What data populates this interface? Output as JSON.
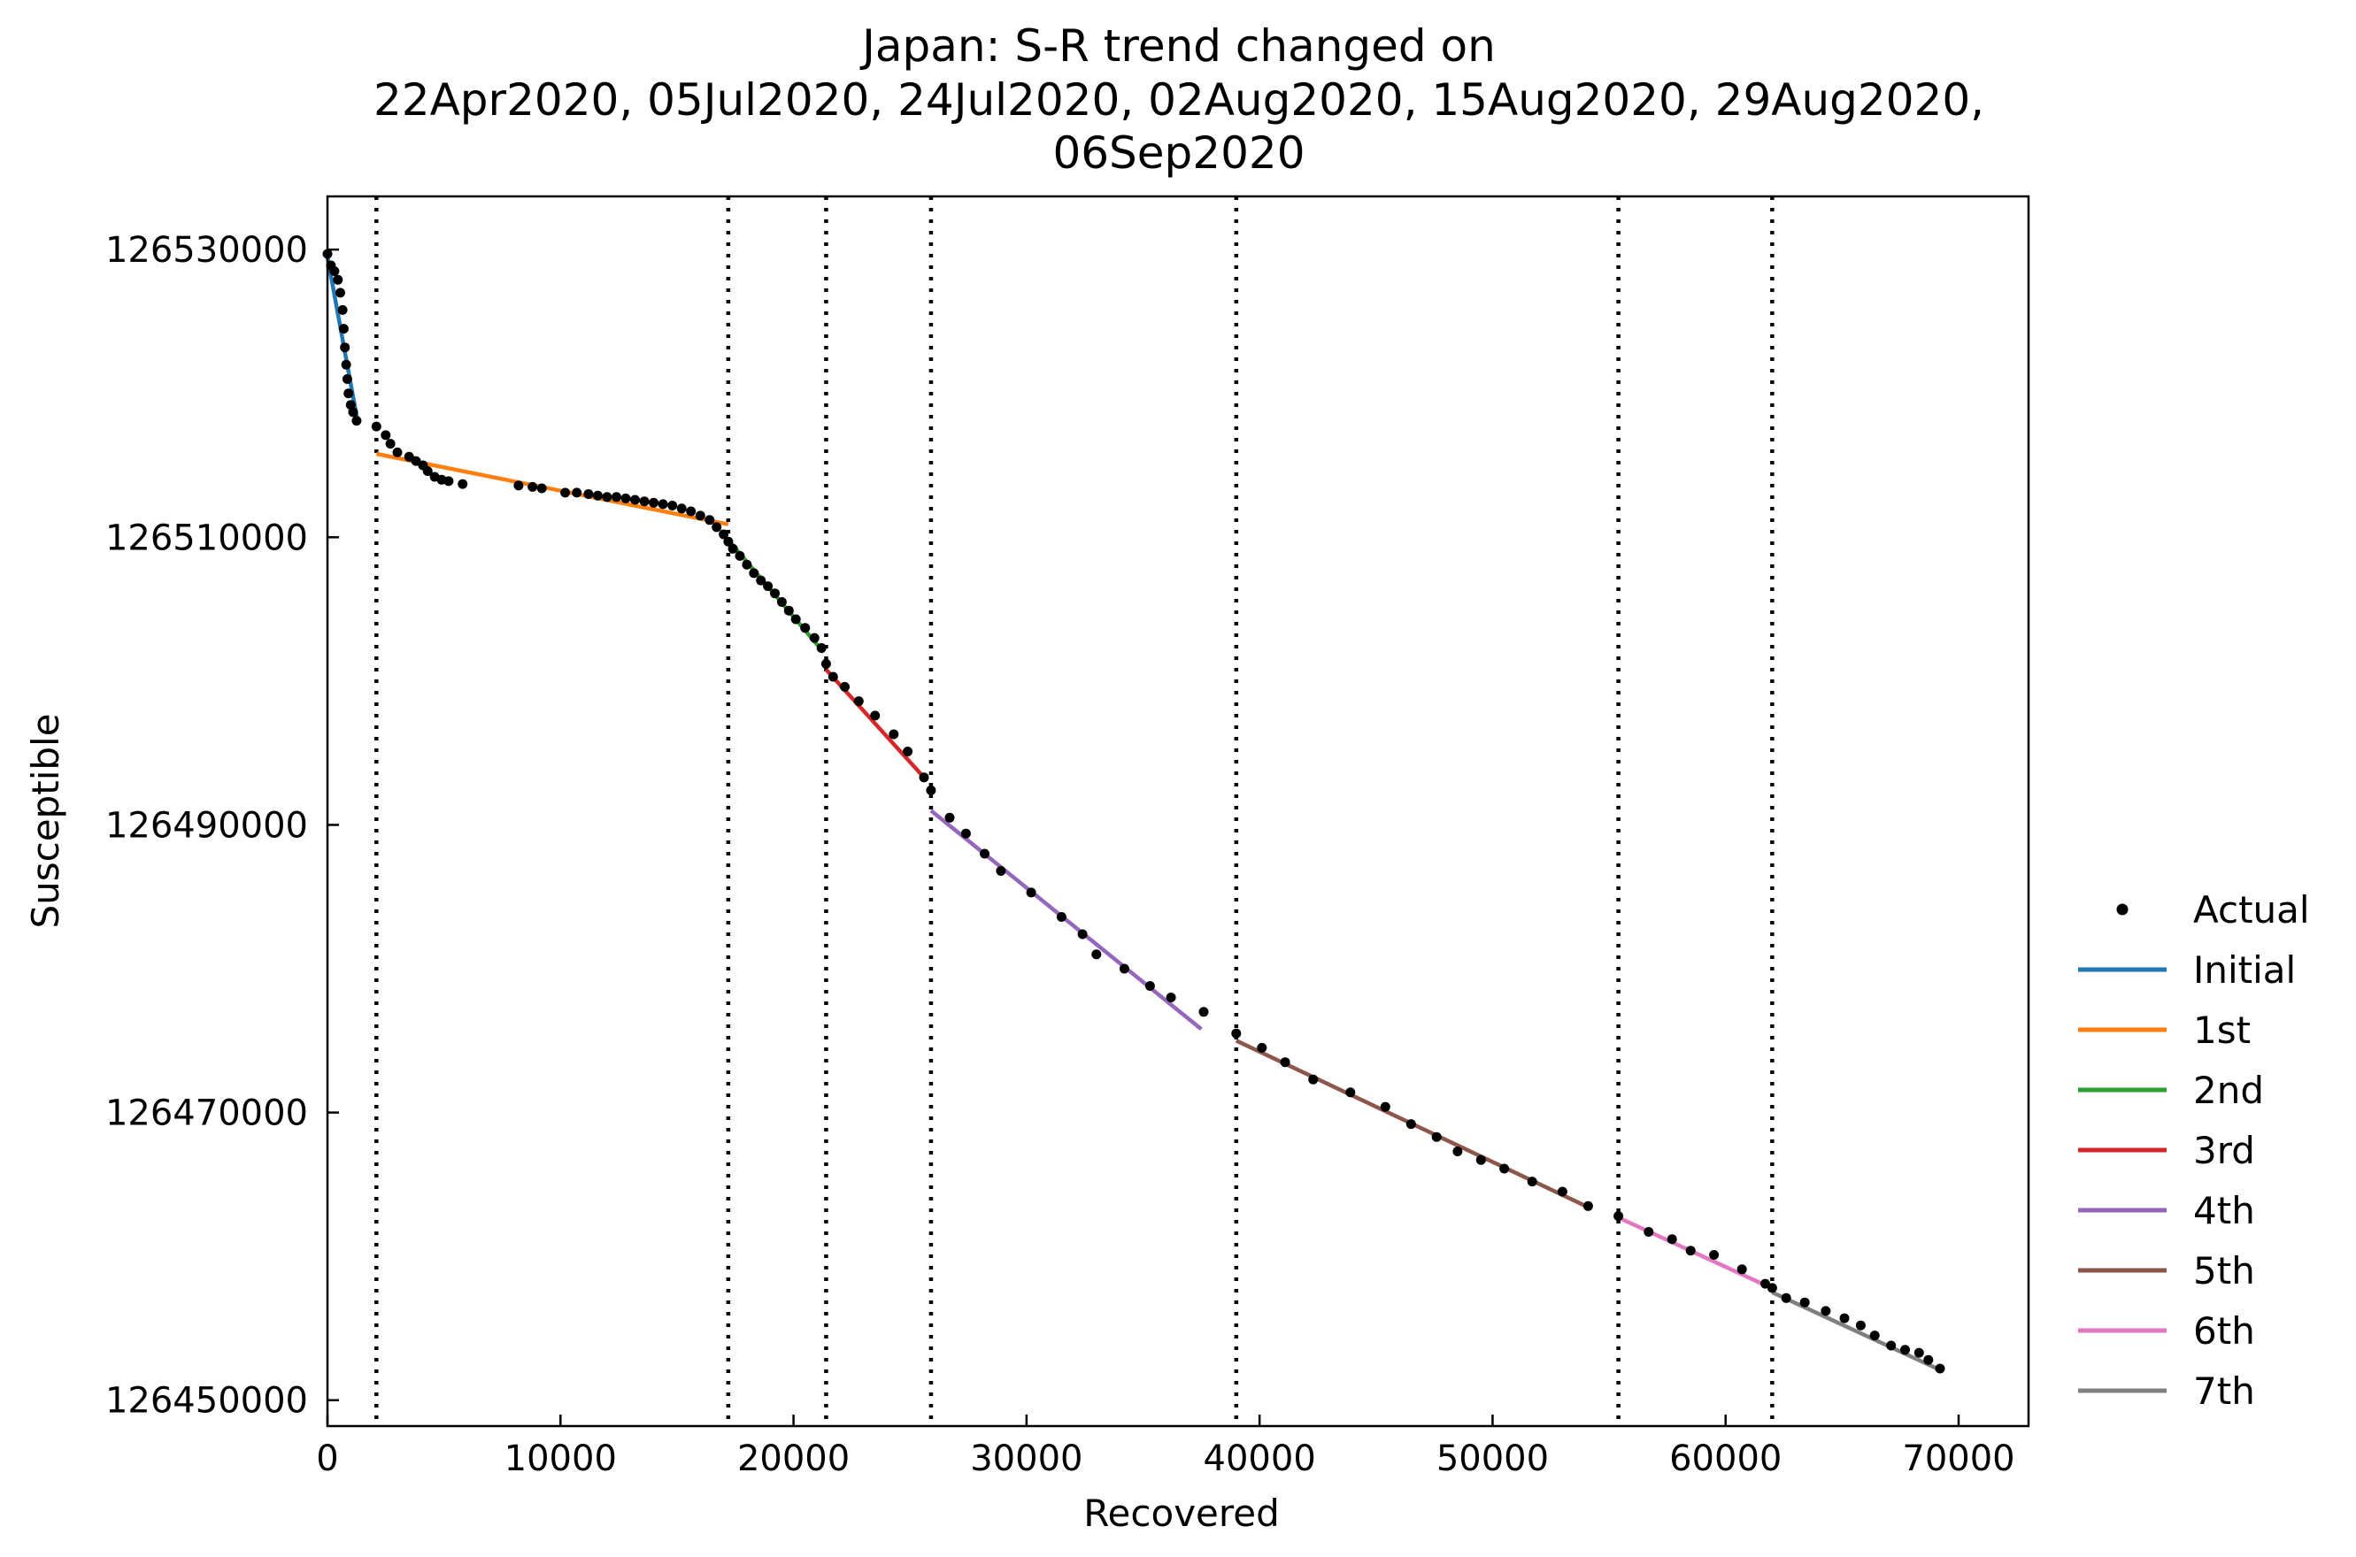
{
  "chart_data": {
    "type": "scatter",
    "title_lines": [
      "Japan: S-R trend changed on",
      "22Apr2020, 05Jul2020, 24Jul2020, 02Aug2020, 15Aug2020, 29Aug2020,",
      "06Sep2020"
    ],
    "xlabel": "Recovered",
    "ylabel": "Susceptible",
    "xlim": [
      0,
      73000
    ],
    "ylim": [
      126448200,
      126533700
    ],
    "xticks": [
      0,
      10000,
      20000,
      30000,
      40000,
      50000,
      60000,
      70000
    ],
    "xtick_labels": [
      "0",
      "10000",
      "20000",
      "30000",
      "40000",
      "50000",
      "60000",
      "70000"
    ],
    "yticks": [
      126450000,
      126470000,
      126490000,
      126510000,
      126530000
    ],
    "ytick_labels": [
      "126450000",
      "126470000",
      "126490000",
      "126510000",
      "126530000"
    ],
    "change_points_x": [
      2100,
      17200,
      21400,
      25900,
      39000,
      55400,
      62000
    ],
    "legend_position": "right, outside plot",
    "legend": [
      {
        "label": "Actual",
        "marker": "dot",
        "color": "#000000"
      },
      {
        "label": "Initial",
        "color": "#1f77b4"
      },
      {
        "label": "1st",
        "color": "#ff7f0e"
      },
      {
        "label": "2nd",
        "color": "#2ca02c"
      },
      {
        "label": "3rd",
        "color": "#d62728"
      },
      {
        "label": "4th",
        "color": "#9467bd"
      },
      {
        "label": "5th",
        "color": "#8c564b"
      },
      {
        "label": "6th",
        "color": "#e377c2"
      },
      {
        "label": "7th",
        "color": "#7f7f7f"
      }
    ],
    "trend_lines": [
      {
        "name": "Initial",
        "color": "#1f77b4",
        "points": [
          [
            0,
            126529500
          ],
          [
            1300,
            126518000
          ]
        ]
      },
      {
        "name": "1st",
        "color": "#ff7f0e",
        "points": [
          [
            2100,
            126515800
          ],
          [
            17200,
            126510900
          ]
        ]
      },
      {
        "name": "2nd",
        "color": "#2ca02c",
        "points": [
          [
            17200,
            126509800
          ],
          [
            21300,
            126502000
          ]
        ]
      },
      {
        "name": "3rd",
        "color": "#d62728",
        "points": [
          [
            21400,
            126500800
          ],
          [
            25600,
            126493300
          ]
        ]
      },
      {
        "name": "4th",
        "color": "#9467bd",
        "points": [
          [
            25900,
            126491000
          ],
          [
            37500,
            126475800
          ]
        ]
      },
      {
        "name": "5th",
        "color": "#8c564b",
        "points": [
          [
            39000,
            126475000
          ],
          [
            54000,
            126463500
          ]
        ]
      },
      {
        "name": "6th",
        "color": "#e377c2",
        "points": [
          [
            55400,
            126462700
          ],
          [
            61700,
            126458000
          ]
        ]
      },
      {
        "name": "7th",
        "color": "#7f7f7f",
        "points": [
          [
            62000,
            126457500
          ],
          [
            69200,
            126452100
          ]
        ]
      }
    ],
    "actual": [
      [
        0,
        126529700
      ],
      [
        150,
        126528900
      ],
      [
        300,
        126528500
      ],
      [
        450,
        126527900
      ],
      [
        550,
        126527000
      ],
      [
        650,
        126525800
      ],
      [
        700,
        126524500
      ],
      [
        750,
        126523200
      ],
      [
        800,
        126522000
      ],
      [
        850,
        126521000
      ],
      [
        900,
        126520000
      ],
      [
        1000,
        126519200
      ],
      [
        1100,
        126518700
      ],
      [
        1250,
        126518100
      ],
      [
        2100,
        126517700
      ],
      [
        2500,
        126517100
      ],
      [
        2700,
        126516500
      ],
      [
        3000,
        126515900
      ],
      [
        3500,
        126515600
      ],
      [
        3800,
        126515300
      ],
      [
        4100,
        126515000
      ],
      [
        4300,
        126514600
      ],
      [
        4600,
        126514200
      ],
      [
        4900,
        126514000
      ],
      [
        5200,
        126513900
      ],
      [
        5800,
        126513700
      ],
      [
        8200,
        126513600
      ],
      [
        8800,
        126513500
      ],
      [
        9200,
        126513400
      ],
      [
        10200,
        126513100
      ],
      [
        10700,
        126513100
      ],
      [
        11200,
        126513000
      ],
      [
        11600,
        126512900
      ],
      [
        12000,
        126512800
      ],
      [
        12400,
        126512800
      ],
      [
        12800,
        126512700
      ],
      [
        13200,
        126512600
      ],
      [
        13600,
        126512500
      ],
      [
        14000,
        126512400
      ],
      [
        14400,
        126512300
      ],
      [
        14800,
        126512200
      ],
      [
        15200,
        126512000
      ],
      [
        15600,
        126511800
      ],
      [
        16000,
        126511500
      ],
      [
        16400,
        126511200
      ],
      [
        16700,
        126510700
      ],
      [
        17000,
        126510200
      ],
      [
        17200,
        126509700
      ],
      [
        17400,
        126509200
      ],
      [
        17700,
        126508700
      ],
      [
        18000,
        126508100
      ],
      [
        18300,
        126507500
      ],
      [
        18600,
        126507000
      ],
      [
        18900,
        126506600
      ],
      [
        19200,
        126506100
      ],
      [
        19500,
        126505500
      ],
      [
        19800,
        126504900
      ],
      [
        20100,
        126504300
      ],
      [
        20500,
        126503700
      ],
      [
        20900,
        126503000
      ],
      [
        21200,
        126502300
      ],
      [
        21400,
        126501200
      ],
      [
        21700,
        126500300
      ],
      [
        22200,
        126499600
      ],
      [
        22800,
        126498600
      ],
      [
        23500,
        126497600
      ],
      [
        24300,
        126496300
      ],
      [
        24900,
        126495100
      ],
      [
        25600,
        126493300
      ],
      [
        25900,
        126492400
      ],
      [
        26700,
        126490500
      ],
      [
        27400,
        126489400
      ],
      [
        28200,
        126488000
      ],
      [
        28900,
        126486800
      ],
      [
        30200,
        126485300
      ],
      [
        31500,
        126483600
      ],
      [
        32400,
        126482400
      ],
      [
        33000,
        126481000
      ],
      [
        34200,
        126480000
      ],
      [
        35300,
        126478800
      ],
      [
        36200,
        126478000
      ],
      [
        37600,
        126477000
      ],
      [
        39000,
        126475500
      ],
      [
        40100,
        126474500
      ],
      [
        41100,
        126473500
      ],
      [
        42300,
        126472300
      ],
      [
        43900,
        126471400
      ],
      [
        45400,
        126470400
      ],
      [
        46500,
        126469200
      ],
      [
        47600,
        126468300
      ],
      [
        48500,
        126467300
      ],
      [
        49500,
        126466700
      ],
      [
        50500,
        126466100
      ],
      [
        51700,
        126465200
      ],
      [
        53000,
        126464500
      ],
      [
        54100,
        126463500
      ],
      [
        55400,
        126462800
      ],
      [
        56700,
        126461700
      ],
      [
        57700,
        126461200
      ],
      [
        58500,
        126460400
      ],
      [
        59500,
        126460100
      ],
      [
        60700,
        126459100
      ],
      [
        61700,
        126458100
      ],
      [
        62000,
        126457800
      ],
      [
        62600,
        126457100
      ],
      [
        63400,
        126456800
      ],
      [
        64300,
        126456200
      ],
      [
        65100,
        126455700
      ],
      [
        65800,
        126455200
      ],
      [
        66400,
        126454500
      ],
      [
        67100,
        126453800
      ],
      [
        67700,
        126453500
      ],
      [
        68300,
        126453300
      ],
      [
        68700,
        126452800
      ],
      [
        69200,
        126452200
      ]
    ]
  }
}
